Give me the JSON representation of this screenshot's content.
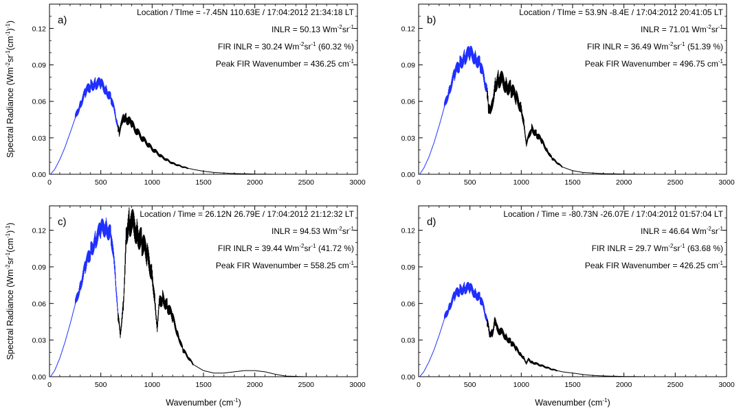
{
  "chart_data": [
    {
      "type": "line",
      "panel_label": "a)",
      "location_time": "Location / TIme = -7.45N 110.63E / 17:04:2012 21:34:18 LT",
      "inlr": "INLR = 50.13 Wm",
      "fir_inlr": "FIR INLR = 30.24 Wm",
      "fir_inlr_percent": "(60.32 %)",
      "peak_fir": "Peak FIR Wavenumber = 436.25 cm",
      "xlabel": "",
      "ylabel": "Spectral Radiance (Wm",
      "xlim": [
        0,
        3000
      ],
      "ylim": [
        0,
        0.14
      ],
      "x_ticks": [
        "0",
        "500",
        "1000",
        "1500",
        "2000",
        "2500",
        "3000"
      ],
      "y_ticks": [
        "0.00",
        "0.03",
        "0.06",
        "0.09",
        "0.12"
      ],
      "fir_cutoff": 667,
      "series": [
        {
          "color": "#1f2fff",
          "x": [
            10,
            50,
            100,
            150,
            200,
            250,
            300,
            350,
            400,
            450,
            500,
            550,
            600,
            640,
            667
          ],
          "y": [
            0.0,
            0.004,
            0.012,
            0.022,
            0.034,
            0.046,
            0.058,
            0.067,
            0.073,
            0.075,
            0.074,
            0.07,
            0.062,
            0.05,
            0.038
          ]
        },
        {
          "color": "#000000",
          "x": [
            667,
            680,
            700,
            720,
            750,
            800,
            900,
            1000,
            1100,
            1200,
            1300,
            1400,
            1500,
            1600,
            1700,
            1800,
            1900,
            2000,
            2100,
            2200,
            2500,
            3000
          ],
          "y": [
            0.038,
            0.034,
            0.04,
            0.048,
            0.046,
            0.041,
            0.03,
            0.021,
            0.014,
            0.009,
            0.006,
            0.004,
            0.0025,
            0.0015,
            0.001,
            0.0006,
            0.0004,
            0.0002,
            0.0001,
            0.0,
            0.0,
            0.0
          ]
        }
      ]
    },
    {
      "type": "line",
      "panel_label": "b)",
      "location_time": "Location / TIme = 53.9N -8.4E / 17:04:2012 20:41:05 LT",
      "inlr": "INLR = 71.01 Wm",
      "fir_inlr": "FIR INLR = 36.49 Wm",
      "fir_inlr_percent": "(51.39 %)",
      "peak_fir": "Peak FIR Wavenumber = 496.75 cm",
      "xlabel": "",
      "ylabel": "",
      "xlim": [
        0,
        3000
      ],
      "ylim": [
        0,
        0.14
      ],
      "x_ticks": [
        "0",
        "500",
        "1000",
        "1500",
        "2000",
        "2500",
        "3000"
      ],
      "y_ticks": [
        "0.00",
        "0.03",
        "0.06",
        "0.09",
        "0.12"
      ],
      "fir_cutoff": 667,
      "series": [
        {
          "color": "#1f2fff",
          "x": [
            10,
            50,
            100,
            150,
            200,
            250,
            300,
            350,
            400,
            450,
            500,
            550,
            600,
            640,
            667
          ],
          "y": [
            0.0,
            0.005,
            0.014,
            0.026,
            0.04,
            0.055,
            0.07,
            0.082,
            0.091,
            0.097,
            0.099,
            0.097,
            0.09,
            0.078,
            0.068
          ]
        },
        {
          "color": "#000000",
          "x": [
            667,
            680,
            700,
            720,
            750,
            780,
            800,
            850,
            900,
            950,
            1000,
            1030,
            1050,
            1070,
            1100,
            1150,
            1200,
            1250,
            1300,
            1400,
            1500,
            1600,
            1800,
            2000,
            2200,
            2500,
            3000
          ],
          "y": [
            0.068,
            0.055,
            0.05,
            0.06,
            0.075,
            0.079,
            0.078,
            0.074,
            0.07,
            0.063,
            0.055,
            0.04,
            0.025,
            0.03,
            0.038,
            0.033,
            0.027,
            0.02,
            0.013,
            0.006,
            0.003,
            0.0015,
            0.0005,
            0.0002,
            0.0,
            0.0,
            0.0
          ]
        }
      ]
    },
    {
      "type": "line",
      "panel_label": "c)",
      "location_time": "Location / Time = 26.12N 26.79E / 17:04:2012 21:12:32 LT",
      "inlr": "INLR = 94.53 Wm",
      "fir_inlr": "FIR INLR = 39.44 Wm",
      "fir_inlr_percent": "(41.72 %)",
      "peak_fir": "Peak FIR Wavenumber = 558.25 cm",
      "xlabel": "Wavenumber (cm",
      "ylabel": "Spectral Radiance (Wm",
      "xlim": [
        0,
        3000
      ],
      "ylim": [
        0,
        0.14
      ],
      "x_ticks": [
        "0",
        "500",
        "1000",
        "1500",
        "2000",
        "2500",
        "3000"
      ],
      "y_ticks": [
        "0.00",
        "0.03",
        "0.06",
        "0.09",
        "0.12"
      ],
      "fir_cutoff": 667,
      "series": [
        {
          "color": "#1f2fff",
          "x": [
            10,
            50,
            100,
            150,
            200,
            250,
            300,
            350,
            400,
            450,
            500,
            550,
            600,
            640,
            667
          ],
          "y": [
            0.0,
            0.005,
            0.015,
            0.028,
            0.043,
            0.059,
            0.075,
            0.09,
            0.103,
            0.113,
            0.12,
            0.124,
            0.115,
            0.085,
            0.05
          ]
        },
        {
          "color": "#000000",
          "x": [
            667,
            690,
            720,
            750,
            780,
            800,
            850,
            900,
            950,
            1000,
            1030,
            1050,
            1070,
            1100,
            1150,
            1200,
            1250,
            1300,
            1400,
            1500,
            1600,
            1700,
            1800,
            1900,
            2000,
            2100,
            2200,
            2300,
            2500,
            3000
          ],
          "y": [
            0.05,
            0.035,
            0.06,
            0.12,
            0.128,
            0.126,
            0.12,
            0.11,
            0.1,
            0.085,
            0.06,
            0.04,
            0.06,
            0.065,
            0.058,
            0.048,
            0.035,
            0.022,
            0.01,
            0.005,
            0.003,
            0.003,
            0.004,
            0.005,
            0.005,
            0.004,
            0.002,
            0.0005,
            0.0,
            0.0
          ]
        }
      ]
    },
    {
      "type": "line",
      "panel_label": "d)",
      "location_time": "Location / Time = -80.73N -26.07E / 17:04:2012 01:57:04 LT",
      "inlr": "INLR = 46.64 Wm",
      "fir_inlr": "FIR INLR = 29.7 Wm",
      "fir_inlr_percent": "(63.68 %)",
      "peak_fir": "Peak FIR Wavenumber = 426.25 cm",
      "xlabel": "Wavenumber (cm",
      "ylabel": "",
      "xlim": [
        0,
        3000
      ],
      "ylim": [
        0,
        0.14
      ],
      "x_ticks": [
        "0",
        "500",
        "1000",
        "1500",
        "2000",
        "2500",
        "3000"
      ],
      "y_ticks": [
        "0.00",
        "0.03",
        "0.06",
        "0.09",
        "0.12"
      ],
      "fir_cutoff": 667,
      "series": [
        {
          "color": "#1f2fff",
          "x": [
            10,
            50,
            100,
            150,
            200,
            250,
            300,
            350,
            400,
            450,
            500,
            550,
            600,
            640,
            667
          ],
          "y": [
            0.0,
            0.004,
            0.012,
            0.022,
            0.034,
            0.047,
            0.058,
            0.066,
            0.071,
            0.073,
            0.072,
            0.069,
            0.064,
            0.055,
            0.045
          ]
        },
        {
          "color": "#000000",
          "x": [
            667,
            690,
            720,
            740,
            760,
            800,
            850,
            900,
            950,
            1000,
            1030,
            1050,
            1070,
            1100,
            1200,
            1300,
            1400,
            1500,
            1600,
            1700,
            1800,
            1900,
            2000,
            2200,
            2500,
            3000
          ],
          "y": [
            0.045,
            0.036,
            0.036,
            0.046,
            0.04,
            0.037,
            0.033,
            0.028,
            0.023,
            0.018,
            0.015,
            0.011,
            0.014,
            0.012,
            0.009,
            0.006,
            0.004,
            0.003,
            0.0018,
            0.001,
            0.0006,
            0.0004,
            0.0002,
            0.0,
            0.0,
            0.0
          ]
        }
      ]
    }
  ]
}
